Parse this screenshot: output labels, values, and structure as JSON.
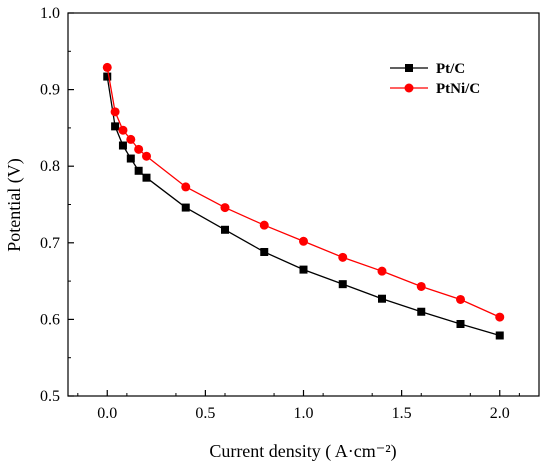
{
  "chart_data": {
    "type": "line",
    "xlabel": "Current density ( A·cm⁻²)",
    "ylabel": "Potential  (V)",
    "xlim": [
      -0.2,
      2.2
    ],
    "ylim": [
      0.5,
      1.0
    ],
    "xticks": [
      0.0,
      0.5,
      1.0,
      1.5,
      2.0
    ],
    "xtick_labels": [
      "0.0",
      "0.5",
      "1.0",
      "1.5",
      "2.0"
    ],
    "yticks": [
      0.5,
      0.6,
      0.7,
      0.8,
      0.9,
      1.0
    ],
    "ytick_labels": [
      "0.5",
      "0.6",
      "0.7",
      "0.8",
      "0.9",
      "1.0"
    ],
    "grid": false,
    "legend": "top-right",
    "series": [
      {
        "name": "Pt/C",
        "color": "#000000",
        "marker": "square",
        "x": [
          0.0,
          0.04,
          0.08,
          0.12,
          0.16,
          0.2,
          0.4,
          0.6,
          0.8,
          1.0,
          1.2,
          1.4,
          1.6,
          1.8,
          2.0
        ],
        "y": [
          0.917,
          0.852,
          0.827,
          0.81,
          0.794,
          0.785,
          0.746,
          0.717,
          0.688,
          0.665,
          0.646,
          0.627,
          0.61,
          0.594,
          0.579
        ]
      },
      {
        "name": "PtNi/C",
        "color": "#ff0000",
        "marker": "circle",
        "x": [
          0.0,
          0.04,
          0.08,
          0.12,
          0.16,
          0.2,
          0.4,
          0.6,
          0.8,
          1.0,
          1.2,
          1.4,
          1.6,
          1.8,
          2.0
        ],
        "y": [
          0.929,
          0.871,
          0.847,
          0.835,
          0.822,
          0.813,
          0.773,
          0.746,
          0.723,
          0.702,
          0.681,
          0.663,
          0.643,
          0.626,
          0.603
        ]
      }
    ]
  }
}
